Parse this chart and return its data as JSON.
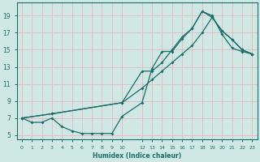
{
  "xlabel": "Humidex (Indice chaleur)",
  "bg_color": "#cfe8e4",
  "grid_color": "#e8b8c0",
  "line_color": "#1a6e6a",
  "xlim": [
    -0.5,
    23.5
  ],
  "ylim": [
    4.5,
    20.5
  ],
  "xtick_labels": [
    "0",
    "1",
    "2",
    "3",
    "4",
    "5",
    "6",
    "7",
    "8",
    "9",
    "10",
    "12",
    "13",
    "14",
    "15",
    "16",
    "17",
    "18",
    "19",
    "20",
    "21",
    "22",
    "23"
  ],
  "xtick_pos": [
    0,
    1,
    2,
    3,
    4,
    5,
    6,
    7,
    8,
    9,
    10,
    12,
    13,
    14,
    15,
    16,
    17,
    18,
    19,
    20,
    21,
    22,
    23
  ],
  "yticks": [
    5,
    7,
    9,
    11,
    13,
    15,
    17,
    19
  ],
  "line1_x": [
    0,
    1,
    2,
    3,
    4,
    5,
    6,
    7,
    8,
    9,
    10,
    12,
    13,
    14,
    15,
    16,
    17,
    18,
    19,
    20,
    21,
    22,
    23
  ],
  "line1_y": [
    7,
    6.5,
    6.5,
    7,
    6,
    5.5,
    5.2,
    5.2,
    5.2,
    5.2,
    7.2,
    8.8,
    12.8,
    14.8,
    14.8,
    16.3,
    17.5,
    19.5,
    19,
    16.8,
    15.2,
    14.8,
    14.5
  ],
  "line2_x": [
    0,
    3,
    10,
    12,
    13,
    14,
    15,
    16,
    17,
    18,
    19,
    20,
    21,
    22,
    23
  ],
  "line2_y": [
    7,
    7.5,
    8.8,
    12.5,
    12.5,
    13.5,
    15,
    16.5,
    17.5,
    19.5,
    18.8,
    17.2,
    16.2,
    15.0,
    14.5
  ],
  "line3_x": [
    0,
    3,
    10,
    12,
    13,
    14,
    15,
    16,
    17,
    18,
    19,
    20,
    21,
    22,
    23
  ],
  "line3_y": [
    7,
    7.5,
    8.8,
    10.5,
    11.5,
    12.5,
    13.5,
    14.5,
    15.5,
    17.0,
    18.8,
    17.2,
    16.2,
    15.0,
    14.5
  ]
}
